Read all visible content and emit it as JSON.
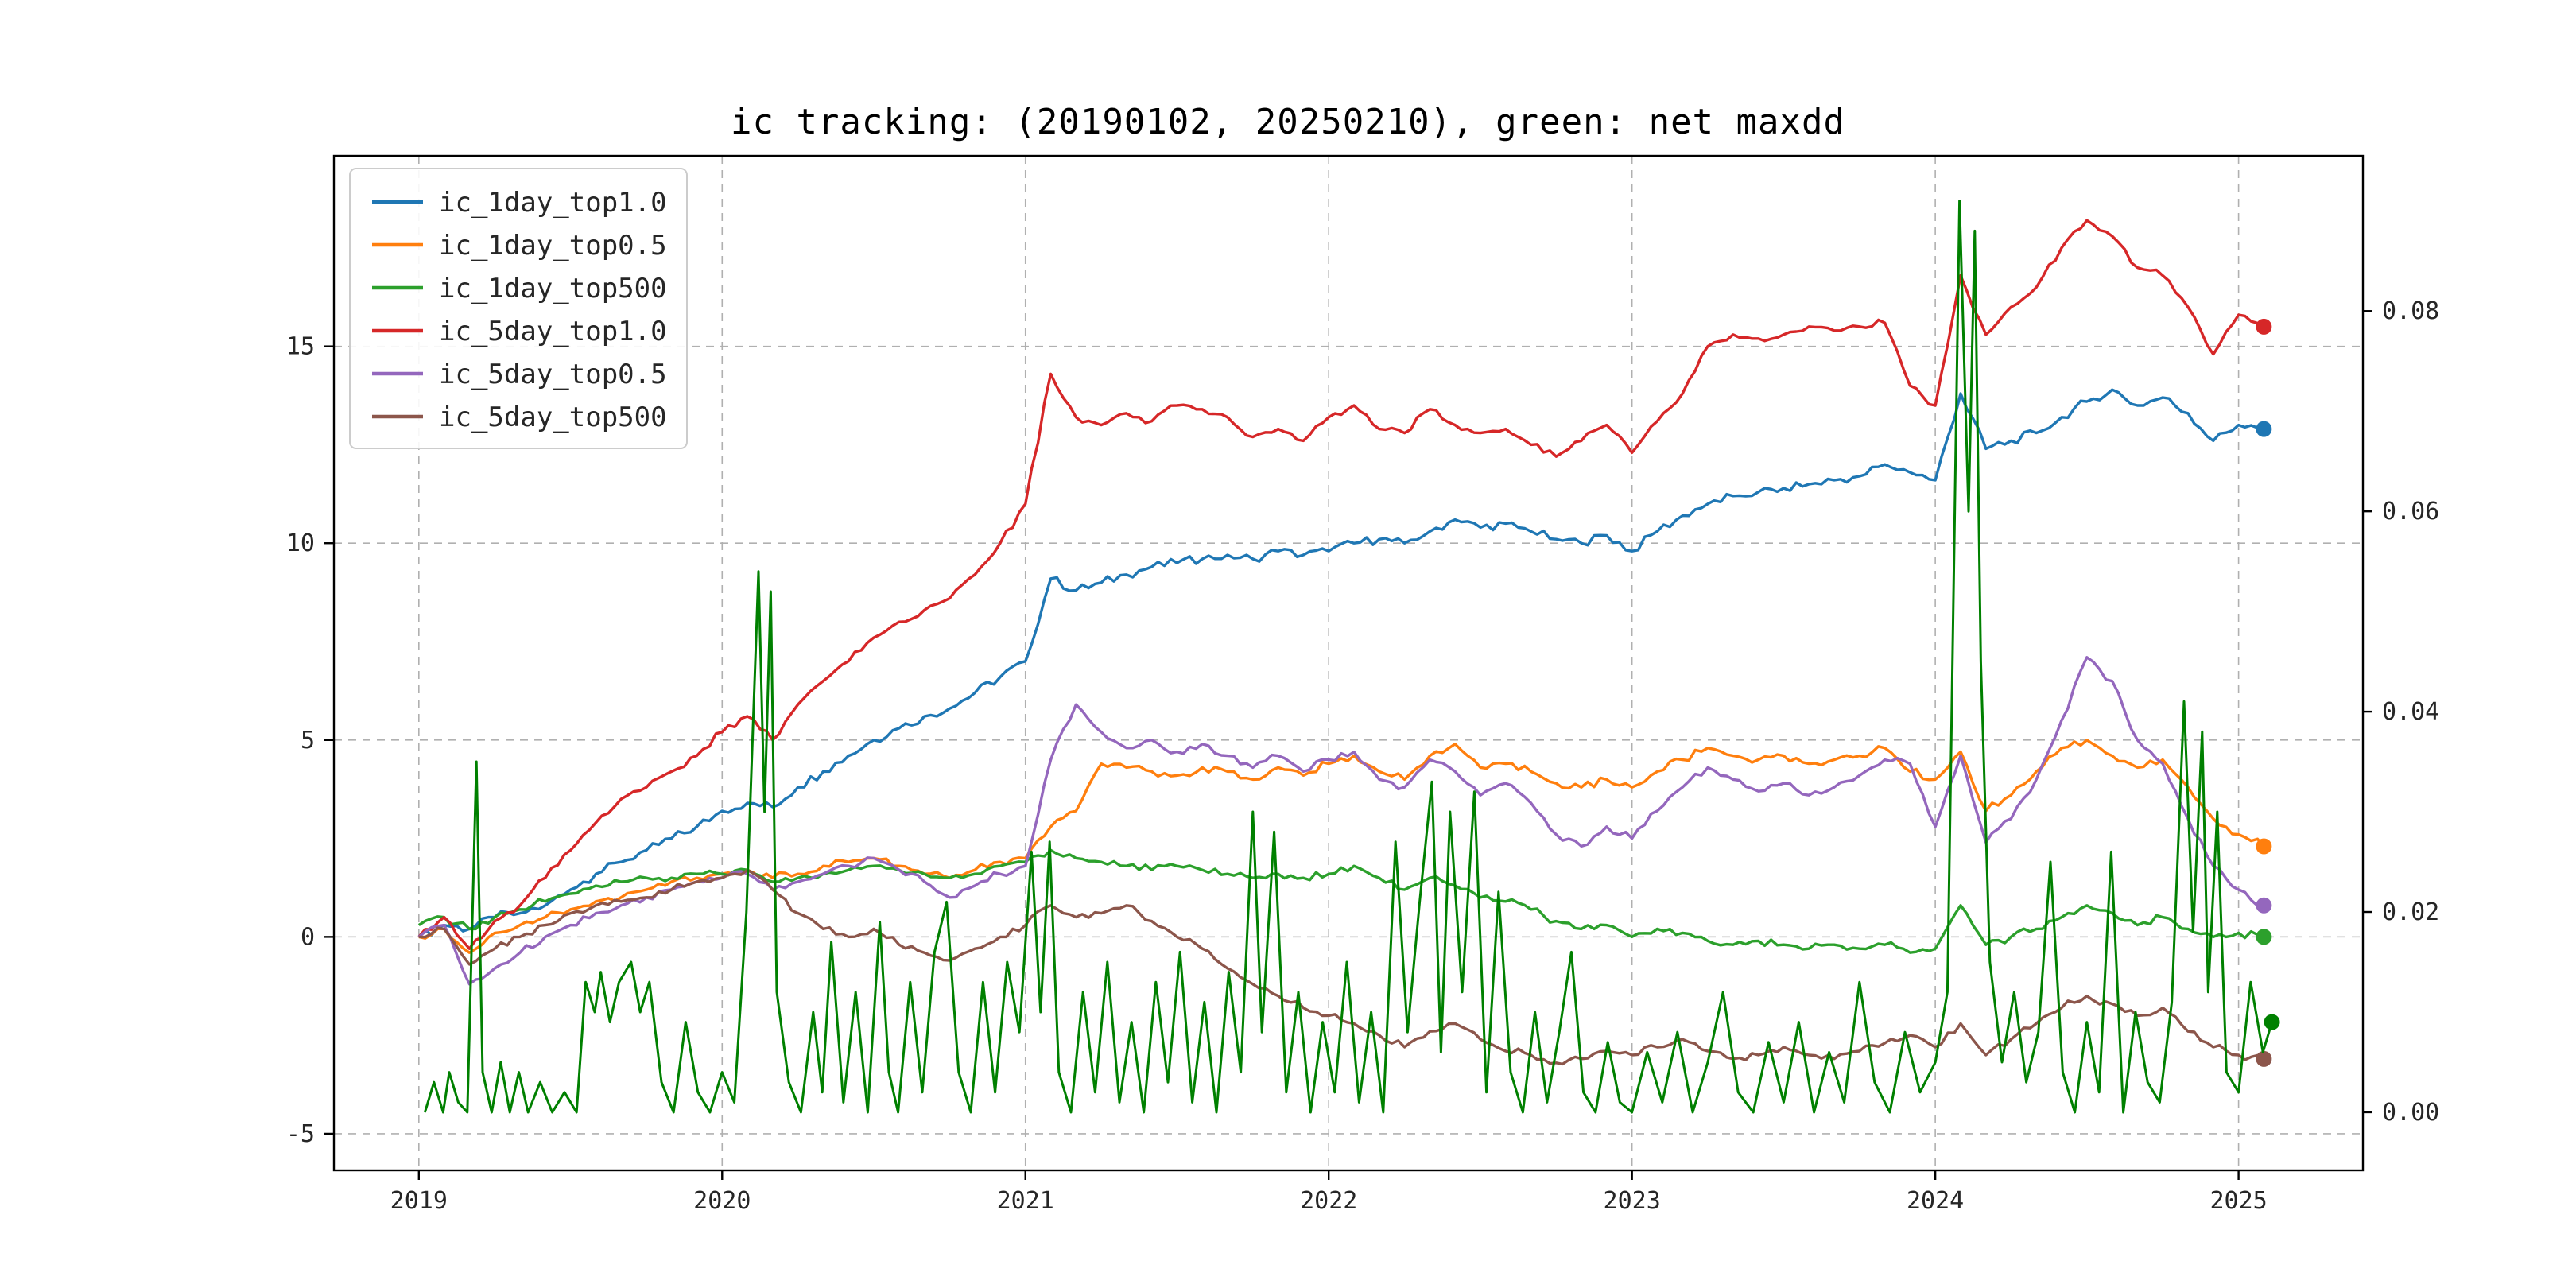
{
  "chart_data": {
    "type": "line",
    "title": "ic tracking: (20190102, 20250210), green: net maxdd",
    "xlabel": "",
    "ylabel_left": "",
    "ylabel_right": "",
    "grid": true,
    "legend_position": "upper-left",
    "xlim": [
      2018.72,
      2025.41
    ],
    "ylim_left": [
      -5.93,
      19.84
    ],
    "ylim_right": [
      -0.0058,
      0.0955
    ],
    "x_ticks": [
      2019,
      2020,
      2021,
      2022,
      2023,
      2024,
      2025
    ],
    "y_ticks_left": [
      -5,
      0,
      5,
      10,
      15
    ],
    "y_ticks_right": [
      0.0,
      0.02,
      0.04,
      0.06,
      0.08
    ],
    "x_start": 2019.0,
    "x_step_years": 0.0833333,
    "series": [
      {
        "name": "ic_1day_top1.0",
        "color": "#1f77b4",
        "axis": "left",
        "values": [
          0.0,
          0.3,
          0.2,
          0.5,
          0.6,
          0.8,
          1.2,
          1.6,
          1.9,
          2.2,
          2.5,
          2.8,
          3.2,
          3.4,
          3.3,
          3.8,
          4.2,
          4.6,
          5.0,
          5.3,
          5.6,
          5.8,
          6.2,
          6.6,
          7.0,
          9.1,
          8.8,
          9.0,
          9.2,
          9.4,
          9.5,
          9.6,
          9.7,
          9.6,
          9.8,
          9.7,
          9.8,
          10.0,
          10.1,
          10.0,
          10.3,
          10.6,
          10.4,
          10.5,
          10.3,
          10.1,
          10.0,
          10.2,
          9.8,
          10.3,
          10.7,
          11.0,
          11.2,
          11.3,
          11.4,
          11.5,
          11.6,
          11.7,
          12.0,
          11.8,
          11.6,
          13.8,
          12.4,
          12.6,
          12.8,
          13.2,
          13.6,
          13.9,
          13.5,
          13.7,
          13.3,
          12.6,
          13.0,
          12.9
        ]
      },
      {
        "name": "ic_1day_top0.5",
        "color": "#ff7f0e",
        "axis": "left",
        "values": [
          0.0,
          0.2,
          -0.4,
          0.1,
          0.3,
          0.5,
          0.7,
          0.9,
          1.0,
          1.2,
          1.4,
          1.5,
          1.6,
          1.7,
          1.5,
          1.6,
          1.8,
          1.9,
          2.0,
          1.8,
          1.6,
          1.5,
          1.7,
          1.9,
          2.0,
          2.8,
          3.2,
          4.4,
          4.3,
          4.2,
          4.1,
          4.3,
          4.2,
          4.0,
          4.3,
          4.1,
          4.4,
          4.6,
          4.2,
          4.0,
          4.6,
          4.9,
          4.3,
          4.4,
          4.2,
          3.9,
          3.8,
          4.0,
          3.8,
          4.2,
          4.5,
          4.8,
          4.6,
          4.5,
          4.6,
          4.4,
          4.5,
          4.6,
          4.8,
          4.2,
          4.0,
          4.7,
          3.2,
          3.6,
          4.2,
          4.8,
          5.0,
          4.6,
          4.3,
          4.5,
          3.8,
          3.0,
          2.6,
          2.3
        ]
      },
      {
        "name": "ic_1day_top500",
        "color": "#2ca02c",
        "axis": "left",
        "values": [
          0.3,
          0.5,
          0.2,
          0.5,
          0.7,
          0.9,
          1.1,
          1.3,
          1.4,
          1.5,
          1.5,
          1.6,
          1.6,
          1.7,
          1.4,
          1.5,
          1.6,
          1.7,
          1.8,
          1.7,
          1.6,
          1.5,
          1.6,
          1.8,
          1.9,
          2.2,
          2.0,
          1.9,
          1.8,
          1.7,
          1.8,
          1.7,
          1.6,
          1.5,
          1.6,
          1.5,
          1.6,
          1.8,
          1.5,
          1.2,
          1.5,
          1.3,
          1.0,
          0.9,
          0.7,
          0.4,
          0.2,
          0.3,
          0.0,
          0.2,
          0.1,
          -0.1,
          -0.2,
          -0.1,
          -0.2,
          -0.3,
          -0.2,
          -0.3,
          -0.2,
          -0.4,
          -0.3,
          0.8,
          -0.2,
          0.0,
          0.2,
          0.5,
          0.8,
          0.6,
          0.3,
          0.5,
          0.2,
          0.0,
          0.1,
          0.0
        ]
      },
      {
        "name": "ic_5day_top1.0",
        "color": "#d62728",
        "axis": "left",
        "values": [
          0.0,
          0.5,
          -0.3,
          0.4,
          0.8,
          1.5,
          2.2,
          2.9,
          3.5,
          3.8,
          4.2,
          4.6,
          5.2,
          5.6,
          5.0,
          5.9,
          6.5,
          7.0,
          7.6,
          8.0,
          8.3,
          8.6,
          9.2,
          10.0,
          11.0,
          14.3,
          13.2,
          13.0,
          13.3,
          13.1,
          13.5,
          13.4,
          13.2,
          12.7,
          12.9,
          12.6,
          13.2,
          13.5,
          12.9,
          12.8,
          13.4,
          13.0,
          12.8,
          12.9,
          12.5,
          12.2,
          12.6,
          13.0,
          12.3,
          13.1,
          13.8,
          15.0,
          15.3,
          15.2,
          15.3,
          15.5,
          15.4,
          15.5,
          15.6,
          14.0,
          13.5,
          16.8,
          15.3,
          16.0,
          16.5,
          17.5,
          18.2,
          17.8,
          17.0,
          16.8,
          16.0,
          14.8,
          15.8,
          15.5
        ]
      },
      {
        "name": "ic_5day_top0.5",
        "color": "#9467bd",
        "axis": "left",
        "values": [
          0.0,
          0.3,
          -1.2,
          -0.8,
          -0.4,
          0.0,
          0.3,
          0.6,
          0.8,
          1.0,
          1.2,
          1.4,
          1.5,
          1.6,
          1.2,
          1.4,
          1.6,
          1.8,
          2.0,
          1.7,
          1.4,
          1.0,
          1.3,
          1.6,
          1.8,
          4.5,
          5.9,
          5.2,
          4.8,
          5.0,
          4.7,
          4.9,
          4.6,
          4.3,
          4.6,
          4.2,
          4.5,
          4.7,
          4.0,
          3.8,
          4.5,
          4.2,
          3.6,
          3.9,
          3.4,
          2.6,
          2.3,
          2.8,
          2.5,
          3.2,
          3.8,
          4.3,
          4.0,
          3.7,
          3.9,
          3.6,
          3.8,
          4.1,
          4.5,
          4.4,
          2.8,
          4.6,
          2.4,
          3.0,
          4.0,
          5.5,
          7.1,
          6.5,
          5.0,
          4.4,
          3.0,
          1.8,
          1.2,
          0.8
        ]
      },
      {
        "name": "ic_5day_top500",
        "color": "#8c564b",
        "axis": "left",
        "values": [
          0.0,
          0.2,
          -0.7,
          -0.3,
          0.0,
          0.3,
          0.6,
          0.8,
          0.9,
          1.0,
          1.2,
          1.4,
          1.5,
          1.7,
          1.2,
          0.6,
          0.2,
          0.0,
          0.2,
          -0.2,
          -0.4,
          -0.6,
          -0.3,
          0.0,
          0.3,
          0.8,
          0.5,
          0.6,
          0.8,
          0.4,
          0.0,
          -0.3,
          -0.8,
          -1.2,
          -1.5,
          -1.8,
          -2.0,
          -2.2,
          -2.5,
          -2.8,
          -2.4,
          -2.2,
          -2.6,
          -2.9,
          -3.0,
          -3.2,
          -3.1,
          -2.9,
          -3.0,
          -2.8,
          -2.6,
          -2.9,
          -3.1,
          -3.0,
          -2.8,
          -3.0,
          -3.1,
          -2.9,
          -2.7,
          -2.5,
          -2.8,
          -2.2,
          -3.0,
          -2.6,
          -2.2,
          -1.8,
          -1.5,
          -1.7,
          -2.0,
          -1.8,
          -2.4,
          -2.8,
          -3.0,
          -3.1
        ]
      }
    ],
    "maxdd": {
      "name": "net maxdd",
      "color": "#008000",
      "axis": "right",
      "points": [
        [
          2019.02,
          0.0
        ],
        [
          2019.05,
          0.003
        ],
        [
          2019.08,
          0.0
        ],
        [
          2019.1,
          0.004
        ],
        [
          2019.13,
          0.001
        ],
        [
          2019.16,
          0.0
        ],
        [
          2019.19,
          0.035
        ],
        [
          2019.21,
          0.004
        ],
        [
          2019.24,
          0.0
        ],
        [
          2019.27,
          0.005
        ],
        [
          2019.3,
          0.0
        ],
        [
          2019.33,
          0.004
        ],
        [
          2019.36,
          0.0
        ],
        [
          2019.4,
          0.003
        ],
        [
          2019.44,
          0.0
        ],
        [
          2019.48,
          0.002
        ],
        [
          2019.52,
          0.0
        ],
        [
          2019.55,
          0.013
        ],
        [
          2019.58,
          0.01
        ],
        [
          2019.6,
          0.014
        ],
        [
          2019.63,
          0.009
        ],
        [
          2019.66,
          0.013
        ],
        [
          2019.7,
          0.015
        ],
        [
          2019.73,
          0.01
        ],
        [
          2019.76,
          0.013
        ],
        [
          2019.8,
          0.003
        ],
        [
          2019.84,
          0.0
        ],
        [
          2019.88,
          0.009
        ],
        [
          2019.92,
          0.002
        ],
        [
          2019.96,
          0.0
        ],
        [
          2020.0,
          0.004
        ],
        [
          2020.04,
          0.001
        ],
        [
          2020.08,
          0.02
        ],
        [
          2020.12,
          0.054
        ],
        [
          2020.14,
          0.03
        ],
        [
          2020.16,
          0.052
        ],
        [
          2020.18,
          0.012
        ],
        [
          2020.22,
          0.003
        ],
        [
          2020.26,
          0.0
        ],
        [
          2020.3,
          0.01
        ],
        [
          2020.33,
          0.002
        ],
        [
          2020.36,
          0.017
        ],
        [
          2020.4,
          0.001
        ],
        [
          2020.44,
          0.012
        ],
        [
          2020.48,
          0.0
        ],
        [
          2020.52,
          0.019
        ],
        [
          2020.55,
          0.004
        ],
        [
          2020.58,
          0.0
        ],
        [
          2020.62,
          0.013
        ],
        [
          2020.66,
          0.002
        ],
        [
          2020.7,
          0.016
        ],
        [
          2020.74,
          0.021
        ],
        [
          2020.78,
          0.004
        ],
        [
          2020.82,
          0.0
        ],
        [
          2020.86,
          0.013
        ],
        [
          2020.9,
          0.002
        ],
        [
          2020.94,
          0.015
        ],
        [
          2020.98,
          0.008
        ],
        [
          2021.02,
          0.026
        ],
        [
          2021.05,
          0.01
        ],
        [
          2021.08,
          0.027
        ],
        [
          2021.11,
          0.004
        ],
        [
          2021.15,
          0.0
        ],
        [
          2021.19,
          0.012
        ],
        [
          2021.23,
          0.002
        ],
        [
          2021.27,
          0.015
        ],
        [
          2021.31,
          0.001
        ],
        [
          2021.35,
          0.009
        ],
        [
          2021.39,
          0.0
        ],
        [
          2021.43,
          0.013
        ],
        [
          2021.47,
          0.003
        ],
        [
          2021.51,
          0.016
        ],
        [
          2021.55,
          0.001
        ],
        [
          2021.59,
          0.011
        ],
        [
          2021.63,
          0.0
        ],
        [
          2021.67,
          0.014
        ],
        [
          2021.71,
          0.004
        ],
        [
          2021.75,
          0.03
        ],
        [
          2021.78,
          0.008
        ],
        [
          2021.82,
          0.028
        ],
        [
          2021.86,
          0.002
        ],
        [
          2021.9,
          0.012
        ],
        [
          2021.94,
          0.0
        ],
        [
          2021.98,
          0.009
        ],
        [
          2022.02,
          0.002
        ],
        [
          2022.06,
          0.015
        ],
        [
          2022.1,
          0.001
        ],
        [
          2022.14,
          0.01
        ],
        [
          2022.18,
          0.0
        ],
        [
          2022.22,
          0.027
        ],
        [
          2022.26,
          0.008
        ],
        [
          2022.3,
          0.021
        ],
        [
          2022.34,
          0.033
        ],
        [
          2022.37,
          0.006
        ],
        [
          2022.4,
          0.03
        ],
        [
          2022.44,
          0.012
        ],
        [
          2022.48,
          0.032
        ],
        [
          2022.52,
          0.002
        ],
        [
          2022.56,
          0.022
        ],
        [
          2022.6,
          0.004
        ],
        [
          2022.64,
          0.0
        ],
        [
          2022.68,
          0.01
        ],
        [
          2022.72,
          0.001
        ],
        [
          2022.76,
          0.008
        ],
        [
          2022.8,
          0.016
        ],
        [
          2022.84,
          0.002
        ],
        [
          2022.88,
          0.0
        ],
        [
          2022.92,
          0.007
        ],
        [
          2022.96,
          0.001
        ],
        [
          2023.0,
          0.0
        ],
        [
          2023.05,
          0.006
        ],
        [
          2023.1,
          0.001
        ],
        [
          2023.15,
          0.008
        ],
        [
          2023.2,
          0.0
        ],
        [
          2023.25,
          0.005
        ],
        [
          2023.3,
          0.012
        ],
        [
          2023.35,
          0.002
        ],
        [
          2023.4,
          0.0
        ],
        [
          2023.45,
          0.007
        ],
        [
          2023.5,
          0.001
        ],
        [
          2023.55,
          0.009
        ],
        [
          2023.6,
          0.0
        ],
        [
          2023.65,
          0.006
        ],
        [
          2023.7,
          0.001
        ],
        [
          2023.75,
          0.013
        ],
        [
          2023.8,
          0.003
        ],
        [
          2023.85,
          0.0
        ],
        [
          2023.9,
          0.008
        ],
        [
          2023.95,
          0.002
        ],
        [
          2024.0,
          0.005
        ],
        [
          2024.04,
          0.012
        ],
        [
          2024.08,
          0.091
        ],
        [
          2024.11,
          0.06
        ],
        [
          2024.13,
          0.088
        ],
        [
          2024.15,
          0.045
        ],
        [
          2024.18,
          0.015
        ],
        [
          2024.22,
          0.005
        ],
        [
          2024.26,
          0.012
        ],
        [
          2024.3,
          0.003
        ],
        [
          2024.34,
          0.008
        ],
        [
          2024.38,
          0.025
        ],
        [
          2024.42,
          0.004
        ],
        [
          2024.46,
          0.0
        ],
        [
          2024.5,
          0.009
        ],
        [
          2024.54,
          0.002
        ],
        [
          2024.58,
          0.026
        ],
        [
          2024.62,
          0.0
        ],
        [
          2024.66,
          0.01
        ],
        [
          2024.7,
          0.003
        ],
        [
          2024.74,
          0.001
        ],
        [
          2024.78,
          0.011
        ],
        [
          2024.82,
          0.041
        ],
        [
          2024.85,
          0.018
        ],
        [
          2024.88,
          0.038
        ],
        [
          2024.9,
          0.012
        ],
        [
          2024.93,
          0.03
        ],
        [
          2024.96,
          0.004
        ],
        [
          2025.0,
          0.002
        ],
        [
          2025.04,
          0.013
        ],
        [
          2025.08,
          0.006
        ],
        [
          2025.11,
          0.009
        ]
      ]
    },
    "legend": [
      "ic_1day_top1.0",
      "ic_1day_top0.5",
      "ic_1day_top500",
      "ic_5day_top1.0",
      "ic_5day_top0.5",
      "ic_5day_top500"
    ],
    "end_markers": true,
    "grid_color": "#b0b0b0",
    "axis_color": "#000000"
  }
}
